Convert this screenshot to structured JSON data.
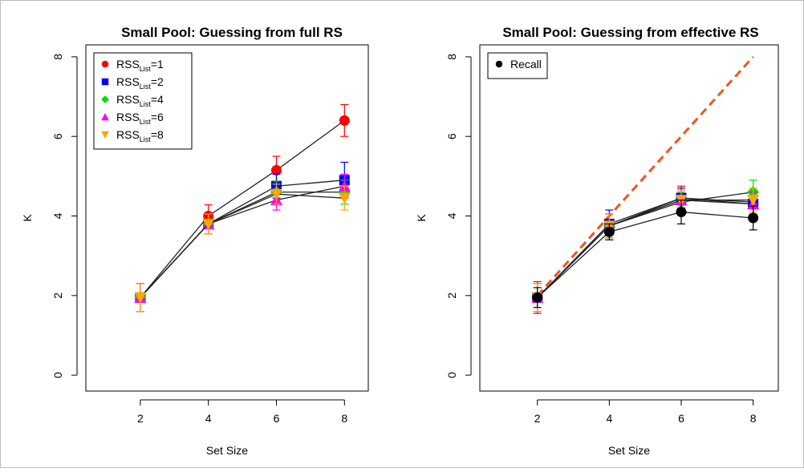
{
  "chart_data": [
    {
      "type": "line",
      "title": "Small Pool: Guessing from full RS",
      "xlabel": "Set Size",
      "ylabel": "K",
      "xlim": [
        0.4,
        8.7
      ],
      "ylim": [
        -0.4,
        8.3
      ],
      "xticks": [
        "2",
        "4",
        "6",
        "8"
      ],
      "yticks": [
        "0",
        "2",
        "4",
        "6",
        "8"
      ],
      "legend_position": "top-left",
      "series": [
        {
          "name": "RSS",
          "sub": "List",
          "eq": "=1",
          "color": "#ff0000",
          "marker": "circle",
          "x": [
            2,
            4,
            6,
            8
          ],
          "y": [
            1.95,
            4.0,
            5.15,
            6.4
          ],
          "err": [
            0.35,
            0.28,
            0.35,
            0.4
          ]
        },
        {
          "name": "RSS",
          "sub": "List",
          "eq": "=2",
          "color": "#0000ff",
          "marker": "square",
          "x": [
            2,
            4,
            6,
            8
          ],
          "y": [
            1.95,
            3.8,
            4.75,
            4.9
          ],
          "err": [
            0.35,
            0.25,
            0.3,
            0.45
          ]
        },
        {
          "name": "RSS",
          "sub": "List",
          "eq": "=4",
          "color": "#00dd00",
          "marker": "diamond",
          "x": [
            2,
            4,
            6,
            8
          ],
          "y": [
            1.95,
            3.8,
            4.6,
            4.6
          ],
          "err": [
            0.35,
            0.25,
            0.28,
            0.3
          ]
        },
        {
          "name": "RSS",
          "sub": "List",
          "eq": "=6",
          "color": "#ff00ff",
          "marker": "triangle-up",
          "x": [
            2,
            4,
            6,
            8
          ],
          "y": [
            1.95,
            3.8,
            4.4,
            4.75
          ],
          "err": [
            0.35,
            0.25,
            0.25,
            0.3
          ]
        },
        {
          "name": "RSS",
          "sub": "List",
          "eq": "=8",
          "color": "#ffa500",
          "marker": "triangle-down",
          "x": [
            2,
            4,
            6,
            8
          ],
          "y": [
            1.95,
            3.8,
            4.55,
            4.45
          ],
          "err": [
            0.35,
            0.25,
            0.25,
            0.3
          ]
        }
      ]
    },
    {
      "type": "line",
      "title": "Small Pool: Guessing from effective RS",
      "xlabel": "Set Size",
      "ylabel": "K",
      "xlim": [
        0.4,
        8.7
      ],
      "ylim": [
        -0.4,
        8.3
      ],
      "xticks": [
        "2",
        "4",
        "6",
        "8"
      ],
      "yticks": [
        "0",
        "2",
        "4",
        "6",
        "8"
      ],
      "legend_position": "top-left",
      "reference_line": {
        "x": [
          2,
          8
        ],
        "y": [
          2,
          8
        ],
        "color": "#ee5522",
        "style": "dashed"
      },
      "series": [
        {
          "name": "",
          "color": "#ff0000",
          "marker": "circle",
          "x": [
            2,
            4,
            6,
            8
          ],
          "y": [
            1.95,
            3.75,
            4.45,
            4.35
          ],
          "err": [
            0.4,
            0.3,
            0.3,
            0.3
          ]
        },
        {
          "name": "",
          "color": "#0000ff",
          "marker": "square",
          "x": [
            2,
            4,
            6,
            8
          ],
          "y": [
            1.95,
            3.8,
            4.45,
            4.3
          ],
          "err": [
            0.35,
            0.35,
            0.25,
            0.3
          ]
        },
        {
          "name": "",
          "color": "#00dd00",
          "marker": "diamond",
          "x": [
            2,
            4,
            6,
            8
          ],
          "y": [
            1.95,
            3.75,
            4.35,
            4.6
          ],
          "err": [
            0.35,
            0.3,
            0.25,
            0.3
          ]
        },
        {
          "name": "",
          "color": "#ff00ff",
          "marker": "triangle-up",
          "x": [
            2,
            4,
            6,
            8
          ],
          "y": [
            1.95,
            3.75,
            4.4,
            4.3
          ],
          "err": [
            0.35,
            0.3,
            0.25,
            0.3
          ]
        },
        {
          "name": "",
          "color": "#ffa500",
          "marker": "triangle-down",
          "x": [
            2,
            4,
            6,
            8
          ],
          "y": [
            1.95,
            3.75,
            4.4,
            4.4
          ],
          "err": [
            0.35,
            0.3,
            0.25,
            0.3
          ]
        },
        {
          "name": "Recall",
          "color": "#000000",
          "marker": "circle",
          "in_legend": true,
          "x": [
            2,
            4,
            6,
            8
          ],
          "y": [
            1.95,
            3.6,
            4.1,
            3.95
          ],
          "err": [
            0.25,
            0.2,
            0.3,
            0.3
          ]
        }
      ]
    }
  ]
}
